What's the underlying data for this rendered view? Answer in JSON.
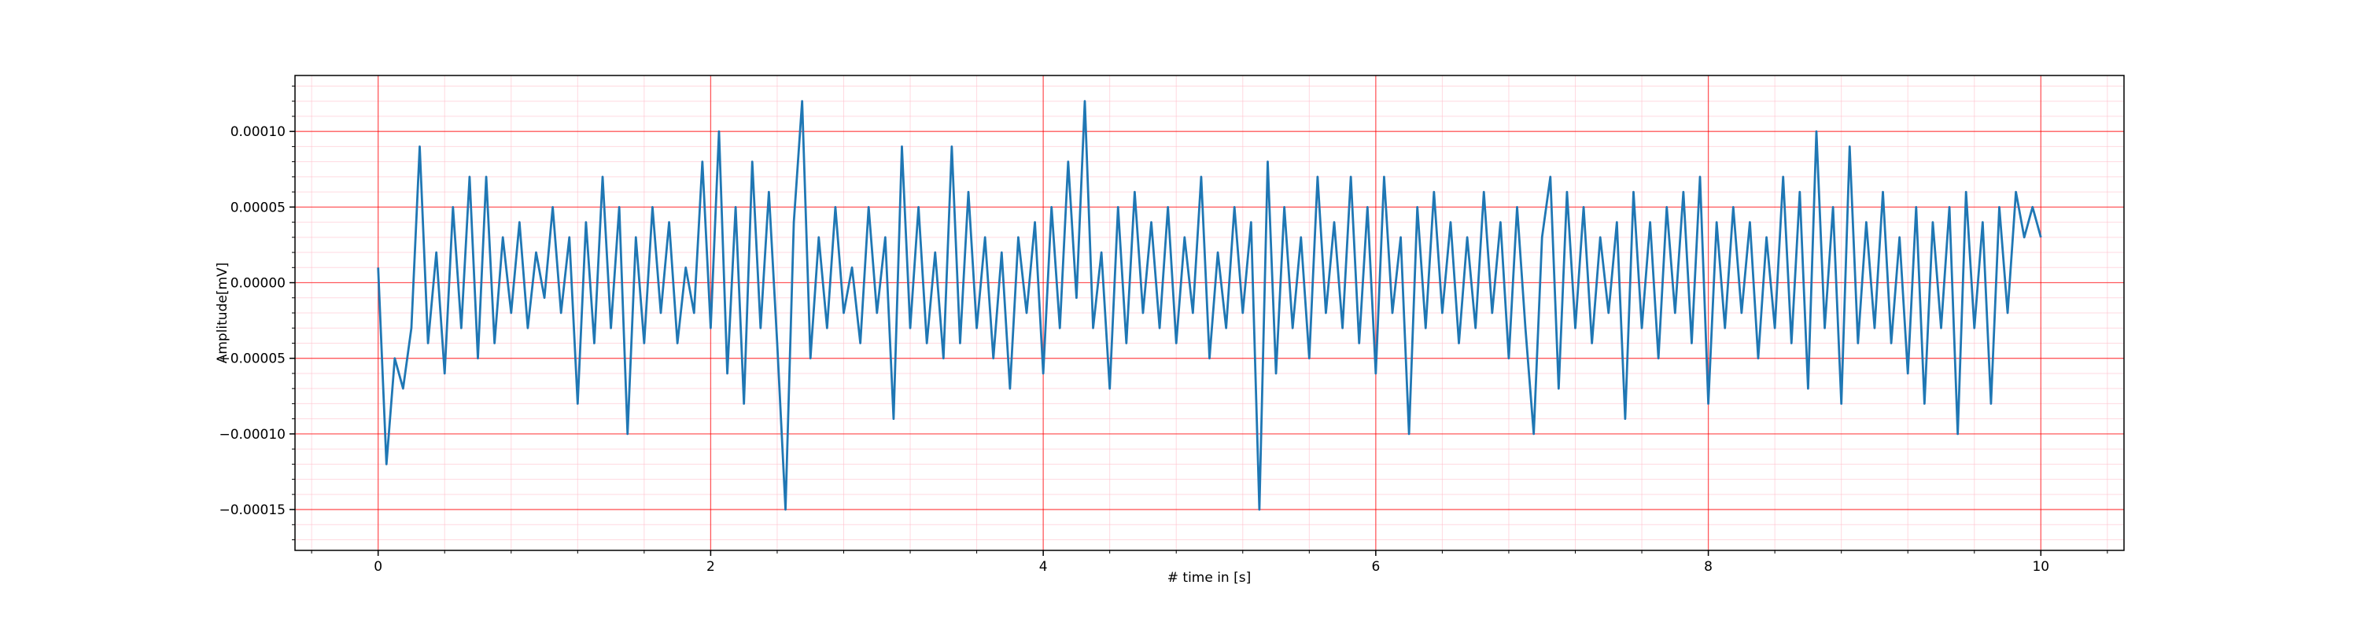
{
  "chart_data": {
    "type": "line",
    "x_label": "# time in [s]",
    "y_label": "Amplitude[mV]",
    "xlim": [
      -0.5,
      10.5
    ],
    "xticks": [
      0,
      2,
      4,
      6,
      8,
      10
    ],
    "ylim": [
      -0.000177,
      0.000137
    ],
    "yticks": [
      {
        "value": -0.00015,
        "label": "−0.00015"
      },
      {
        "value": -0.0001,
        "label": "−0.00010"
      },
      {
        "value": -5e-05,
        "label": "−0.00005"
      },
      {
        "value": 0,
        "label": "0.00000"
      },
      {
        "value": 5e-05,
        "label": "0.00005"
      },
      {
        "value": 0.0001,
        "label": "0.00010"
      }
    ],
    "grid": true,
    "grid_color": "#ff0000",
    "minor_grid_color": "#ffc0cb",
    "minor_ticks_per_major": 5,
    "x": [
      0,
      0.05,
      0.1,
      0.15,
      0.2,
      0.25,
      0.3,
      0.35,
      0.4,
      0.45,
      0.5,
      0.55,
      0.6,
      0.65,
      0.7,
      0.75,
      0.8,
      0.85,
      0.9,
      0.95,
      1,
      1.05,
      1.1,
      1.15,
      1.2,
      1.25,
      1.3,
      1.35,
      1.4,
      1.45,
      1.5,
      1.55,
      1.6,
      1.65,
      1.7,
      1.75,
      1.8,
      1.85,
      1.9,
      1.95,
      2,
      2.05,
      2.1,
      2.15,
      2.2,
      2.25,
      2.3,
      2.35,
      2.4,
      2.45,
      2.5,
      2.55,
      2.6,
      2.65,
      2.7,
      2.75,
      2.8,
      2.85,
      2.9,
      2.95,
      3,
      3.05,
      3.1,
      3.15,
      3.2,
      3.25,
      3.3,
      3.35,
      3.4,
      3.45,
      3.5,
      3.55,
      3.6,
      3.65,
      3.7,
      3.75,
      3.8,
      3.85,
      3.9,
      3.95,
      4,
      4.05,
      4.1,
      4.15,
      4.2,
      4.25,
      4.3,
      4.35,
      4.4,
      4.45,
      4.5,
      4.55,
      4.6,
      4.65,
      4.7,
      4.75,
      4.8,
      4.85,
      4.9,
      4.95,
      5,
      5.05,
      5.1,
      5.15,
      5.2,
      5.25,
      5.3,
      5.35,
      5.4,
      5.45,
      5.5,
      5.55,
      5.6,
      5.65,
      5.7,
      5.75,
      5.8,
      5.85,
      5.9,
      5.95,
      6,
      6.05,
      6.1,
      6.15,
      6.2,
      6.25,
      6.3,
      6.35,
      6.4,
      6.45,
      6.5,
      6.55,
      6.6,
      6.65,
      6.7,
      6.75,
      6.8,
      6.85,
      6.9,
      6.95,
      7,
      7.05,
      7.1,
      7.15,
      7.2,
      7.25,
      7.3,
      7.35,
      7.4,
      7.45,
      7.5,
      7.55,
      7.6,
      7.65,
      7.7,
      7.75,
      7.8,
      7.85,
      7.9,
      7.95,
      8,
      8.05,
      8.1,
      8.15,
      8.2,
      8.25,
      8.3,
      8.35,
      8.4,
      8.45,
      8.5,
      8.55,
      8.6,
      8.65,
      8.7,
      8.75,
      8.8,
      8.85,
      8.9,
      8.95,
      9,
      9.05,
      9.1,
      9.15,
      9.2,
      9.25,
      9.3,
      9.35,
      9.4,
      9.45,
      9.5,
      9.55,
      9.6,
      9.65,
      9.7,
      9.75,
      9.8,
      9.85,
      9.9,
      9.95,
      10
    ],
    "series": [
      {
        "color": "#1f77b4",
        "values": [
          1e-05,
          -0.00012,
          -5e-05,
          -7e-05,
          -3e-05,
          9e-05,
          -4e-05,
          2e-05,
          -6e-05,
          5e-05,
          -3e-05,
          7e-05,
          -5e-05,
          7e-05,
          -4e-05,
          3e-05,
          -2e-05,
          4e-05,
          -3e-05,
          2e-05,
          -1e-05,
          5e-05,
          -2e-05,
          3e-05,
          -8e-05,
          4e-05,
          -4e-05,
          7e-05,
          -3e-05,
          5e-05,
          -0.0001,
          3e-05,
          -4e-05,
          5e-05,
          -2e-05,
          4e-05,
          -4e-05,
          1e-05,
          -2e-05,
          8e-05,
          -3e-05,
          0.0001,
          -6e-05,
          5e-05,
          -8e-05,
          8e-05,
          -3e-05,
          6e-05,
          -4e-05,
          -0.00015,
          4e-05,
          0.00012,
          -5e-05,
          3e-05,
          -3e-05,
          5e-05,
          -2e-05,
          1e-05,
          -4e-05,
          5e-05,
          -2e-05,
          3e-05,
          -9e-05,
          9e-05,
          -3e-05,
          5e-05,
          -4e-05,
          2e-05,
          -5e-05,
          9e-05,
          -4e-05,
          6e-05,
          -3e-05,
          3e-05,
          -5e-05,
          2e-05,
          -7e-05,
          3e-05,
          -2e-05,
          4e-05,
          -6e-05,
          5e-05,
          -3e-05,
          8e-05,
          -1e-05,
          0.00012,
          -3e-05,
          2e-05,
          -7e-05,
          5e-05,
          -4e-05,
          6e-05,
          -2e-05,
          4e-05,
          -3e-05,
          5e-05,
          -4e-05,
          3e-05,
          -2e-05,
          7e-05,
          -5e-05,
          2e-05,
          -3e-05,
          5e-05,
          -2e-05,
          4e-05,
          -0.00015,
          8e-05,
          -6e-05,
          5e-05,
          -3e-05,
          3e-05,
          -5e-05,
          7e-05,
          -2e-05,
          4e-05,
          -3e-05,
          7e-05,
          -4e-05,
          5e-05,
          -6e-05,
          7e-05,
          -2e-05,
          3e-05,
          -0.0001,
          5e-05,
          -3e-05,
          6e-05,
          -2e-05,
          4e-05,
          -4e-05,
          3e-05,
          -3e-05,
          6e-05,
          -2e-05,
          4e-05,
          -5e-05,
          5e-05,
          -3e-05,
          -0.0001,
          3e-05,
          7e-05,
          -7e-05,
          6e-05,
          -3e-05,
          5e-05,
          -4e-05,
          3e-05,
          -2e-05,
          4e-05,
          -9e-05,
          6e-05,
          -3e-05,
          4e-05,
          -5e-05,
          5e-05,
          -2e-05,
          6e-05,
          -4e-05,
          7e-05,
          -8e-05,
          4e-05,
          -3e-05,
          5e-05,
          -2e-05,
          4e-05,
          -5e-05,
          3e-05,
          -3e-05,
          7e-05,
          -4e-05,
          6e-05,
          -7e-05,
          0.0001,
          -3e-05,
          5e-05,
          -8e-05,
          9e-05,
          -4e-05,
          4e-05,
          -3e-05,
          6e-05,
          -4e-05,
          3e-05,
          -6e-05,
          5e-05,
          -8e-05,
          4e-05,
          -3e-05,
          5e-05,
          -0.0001,
          6e-05,
          -3e-05,
          4e-05,
          -8e-05,
          5e-05,
          -2e-05,
          6e-05,
          3e-05,
          5e-05,
          3e-05
        ]
      }
    ]
  }
}
